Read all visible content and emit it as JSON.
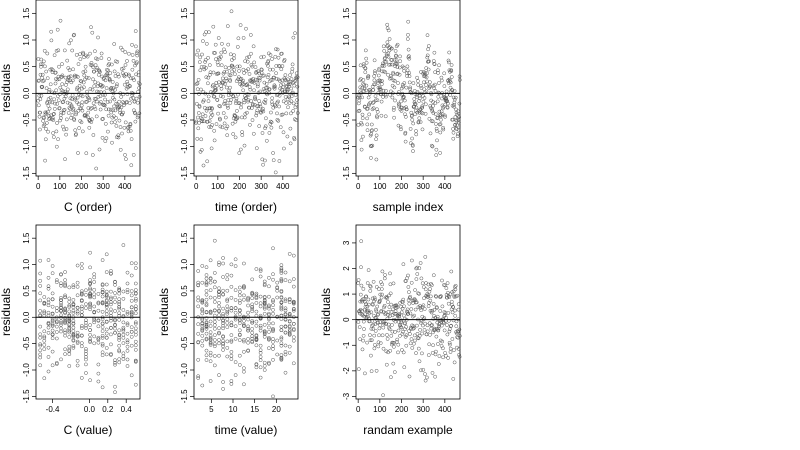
{
  "chart_data": [
    {
      "type": "scatter",
      "panel": "top-left",
      "xlabel": "C (order)",
      "ylabel": "residuals",
      "xticks": [
        0,
        100,
        200,
        300,
        400
      ],
      "yticks": [
        -1.5,
        -1.0,
        -0.5,
        0.0,
        0.5,
        1.0,
        1.5
      ],
      "ytick_labels": [
        "-1.5",
        "-1.0",
        "-0.5",
        "0.0",
        "0.5",
        "1.0",
        "1.5"
      ],
      "xlim": [
        -10,
        470
      ],
      "ylim": [
        -1.55,
        1.75
      ],
      "hline": 0,
      "n_points": 470,
      "pattern": "uniform noise",
      "seed": 11,
      "sd": 0.5
    },
    {
      "type": "scatter",
      "panel": "top-middle",
      "xlabel": "time (order)",
      "ylabel": "residuals",
      "xticks": [
        0,
        100,
        200,
        300,
        400
      ],
      "yticks": [
        -1.5,
        -1.0,
        -0.5,
        0.0,
        0.5,
        1.0,
        1.5
      ],
      "ytick_labels": [
        "-1.5",
        "-1.0",
        "-0.5",
        "0.0",
        "0.5",
        "1.0",
        "1.5"
      ],
      "xlim": [
        -10,
        470
      ],
      "ylim": [
        -1.55,
        1.75
      ],
      "hline": 0,
      "n_points": 470,
      "pattern": "uniform noise",
      "seed": 23,
      "sd": 0.5
    },
    {
      "type": "scatter",
      "panel": "top-right",
      "xlabel": "sample index",
      "ylabel": "residuals",
      "xticks": [
        0,
        100,
        200,
        300,
        400
      ],
      "yticks": [
        -1.5,
        -1.0,
        -0.5,
        0.0,
        0.5,
        1.0,
        1.5
      ],
      "ytick_labels": [
        "-1.5",
        "-1.0",
        "-0.5",
        "0.0",
        "0.5",
        "1.0",
        "1.5"
      ],
      "xlim": [
        -10,
        470
      ],
      "ylim": [
        -1.55,
        1.75
      ],
      "hline": 0,
      "n_points": 470,
      "pattern": "autocorrelated",
      "seed": 37,
      "sd": 0.5
    },
    {
      "type": "scatter",
      "panel": "bottom-left",
      "xlabel": "C (value)",
      "ylabel": "residuals",
      "xticks": [
        -0.4,
        0.0,
        0.2,
        0.4
      ],
      "xtick_labels": [
        "-0.4",
        "0.0",
        "0.2",
        "0.4"
      ],
      "yticks": [
        -1.5,
        -1.0,
        -0.5,
        0.0,
        0.5,
        1.0,
        1.5
      ],
      "ytick_labels": [
        "-1.5",
        "-1.0",
        "-0.5",
        "0.0",
        "0.5",
        "1.0",
        "1.5"
      ],
      "xlim": [
        -0.58,
        0.55
      ],
      "ylim": [
        -1.55,
        1.75
      ],
      "hline": 0,
      "n_points": 470,
      "pattern": "discrete x columns",
      "seed": 53,
      "sd": 0.5
    },
    {
      "type": "scatter",
      "panel": "bottom-middle",
      "xlabel": "time (value)",
      "ylabel": "residuals",
      "xticks": [
        5,
        10,
        15,
        20
      ],
      "yticks": [
        -1.5,
        -1.0,
        -0.5,
        0.0,
        0.5,
        1.0,
        1.5
      ],
      "ytick_labels": [
        "-1.5",
        "-1.0",
        "-0.5",
        "0.0",
        "0.5",
        "1.0",
        "1.5"
      ],
      "xlim": [
        1,
        25
      ],
      "ylim": [
        -1.55,
        1.75
      ],
      "hline": 0,
      "n_points": 470,
      "pattern": "discrete x columns",
      "seed": 71,
      "sd": 0.5
    },
    {
      "type": "scatter",
      "panel": "bottom-right",
      "xlabel": "randam example",
      "ylabel": "residuals",
      "xticks": [
        0,
        100,
        200,
        300,
        400
      ],
      "yticks": [
        -3,
        -2,
        -1,
        0,
        1,
        2,
        3
      ],
      "ytick_labels": [
        "-3",
        "-2",
        "-1",
        "0",
        "1",
        "2",
        "3"
      ],
      "xlim": [
        -10,
        470
      ],
      "ylim": [
        -3.1,
        3.7
      ],
      "hline": 0,
      "n_points": 470,
      "pattern": "uniform noise",
      "seed": 97,
      "sd": 1.0
    }
  ]
}
